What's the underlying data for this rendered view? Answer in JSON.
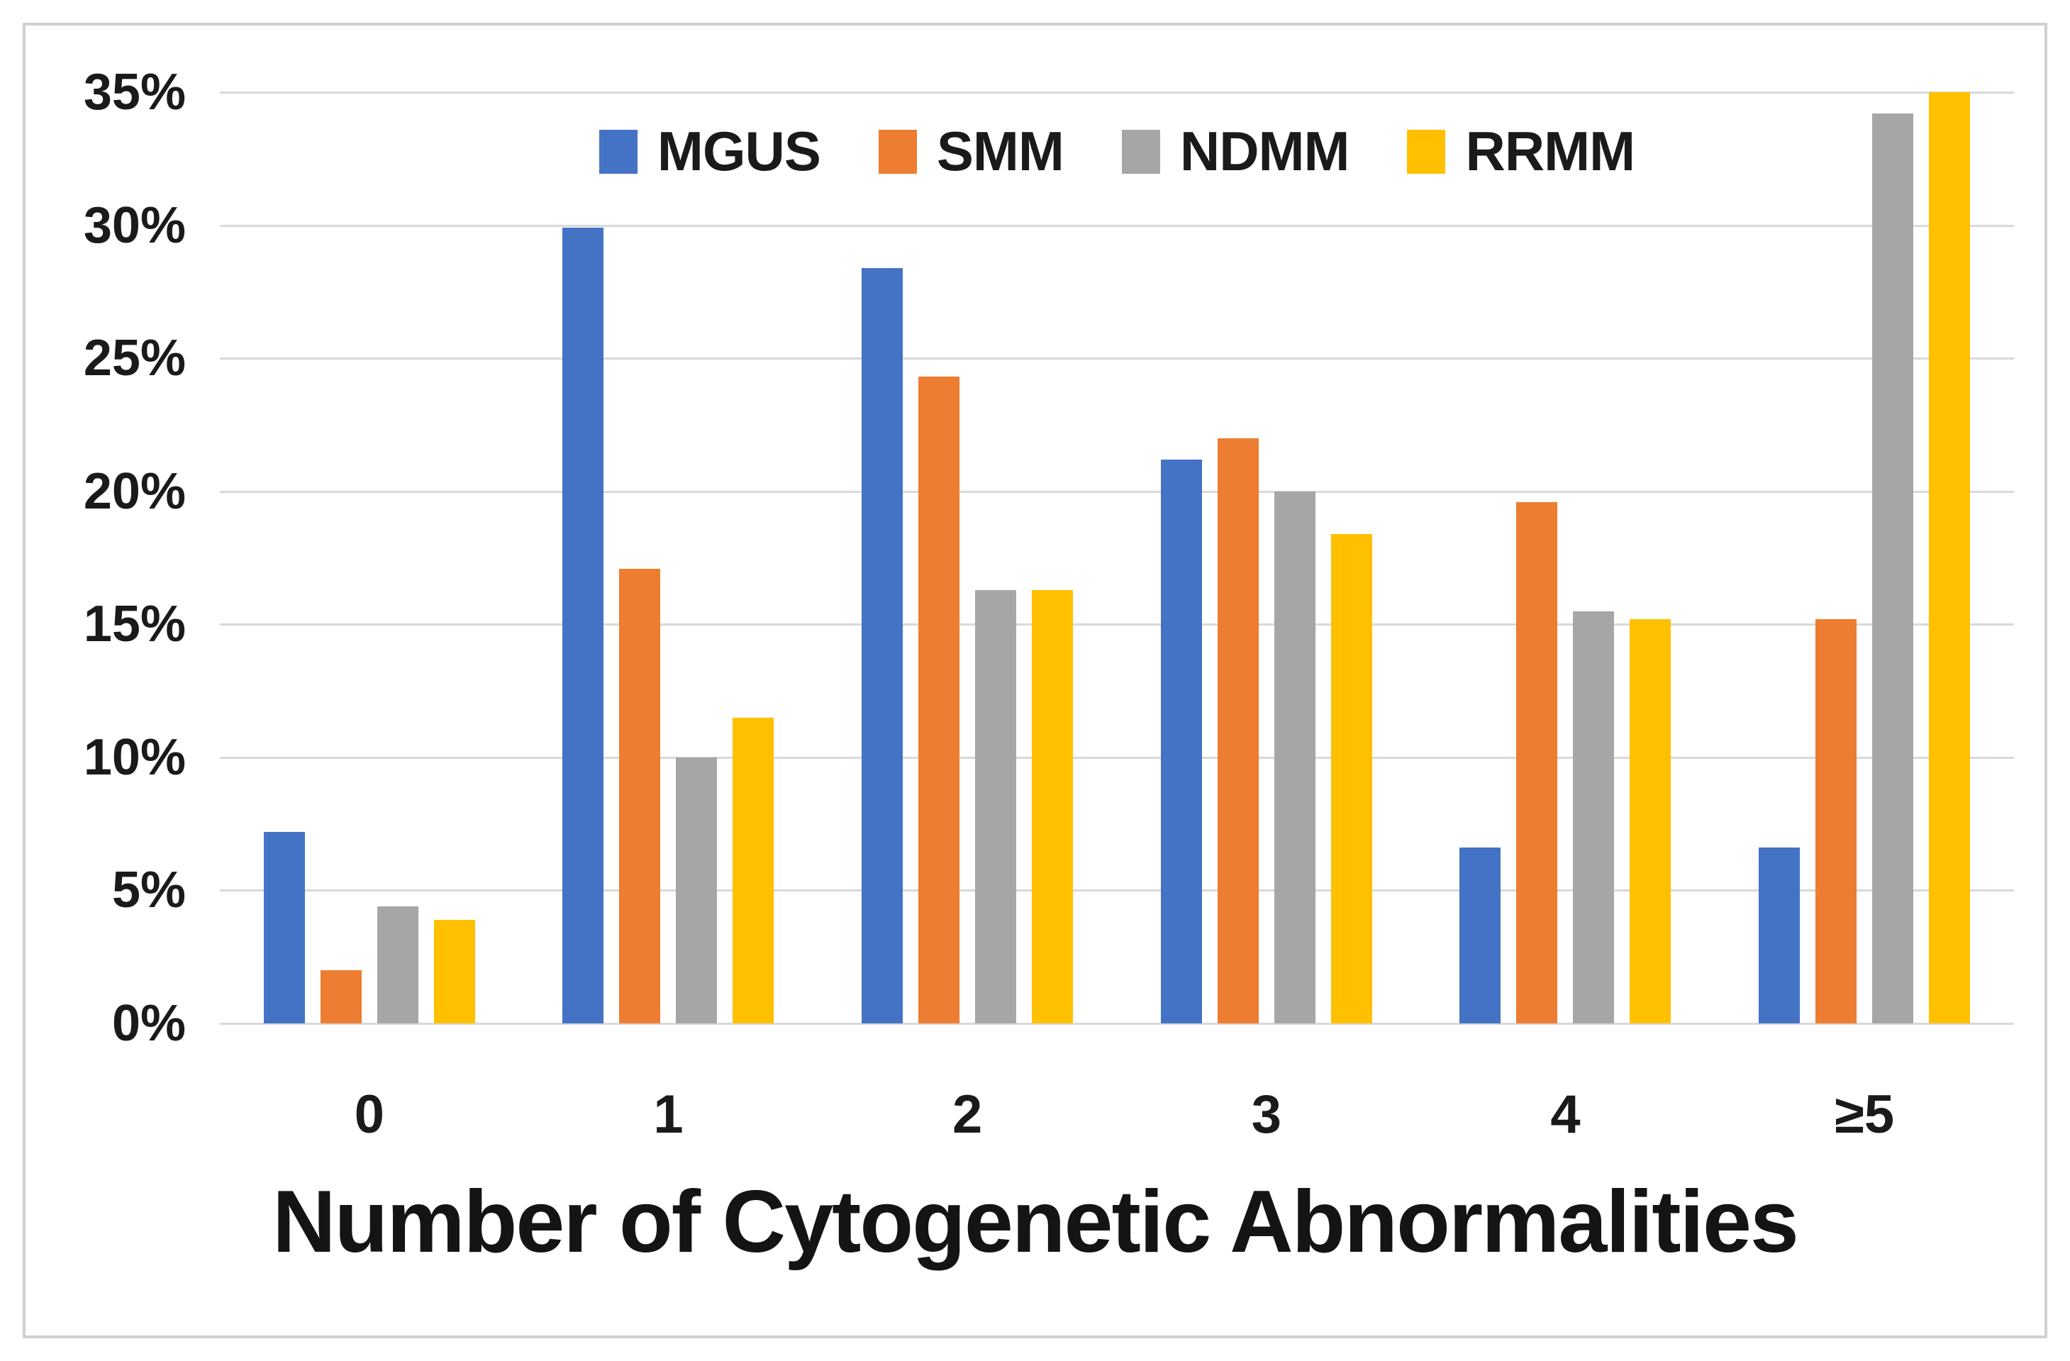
{
  "chart_data": {
    "type": "bar",
    "title": "Number of Cytogenetic Abnormalities",
    "xlabel": "Number of Cytogenetic Abnormalities",
    "ylabel": "",
    "categories": [
      "0",
      "1",
      "2",
      "3",
      "4",
      "≥5"
    ],
    "series": [
      {
        "name": "MGUS",
        "color": "#4472C4",
        "values": [
          7.2,
          29.9,
          28.4,
          21.2,
          6.6,
          6.6
        ]
      },
      {
        "name": "SMM",
        "color": "#ED7D31",
        "values": [
          2.0,
          17.1,
          24.3,
          22.0,
          19.6,
          15.2
        ]
      },
      {
        "name": "NDMM",
        "color": "#A6A6A6",
        "values": [
          4.4,
          10.0,
          16.3,
          20.0,
          15.5,
          34.2
        ]
      },
      {
        "name": "RRMM",
        "color": "#FFC000",
        "values": [
          3.9,
          11.5,
          16.3,
          18.4,
          15.2,
          35.0
        ]
      }
    ],
    "ylim": [
      0,
      35
    ],
    "ytick_step": 5,
    "ytick_labels": [
      "0%",
      "5%",
      "10%",
      "15%",
      "20%",
      "25%",
      "30%",
      "35%"
    ],
    "grid": true,
    "legend_position": "top-center",
    "gridline_color": "#d9d9d9",
    "text_color": "#1a1a1a",
    "frame_border_color": "#cfcfcf"
  }
}
